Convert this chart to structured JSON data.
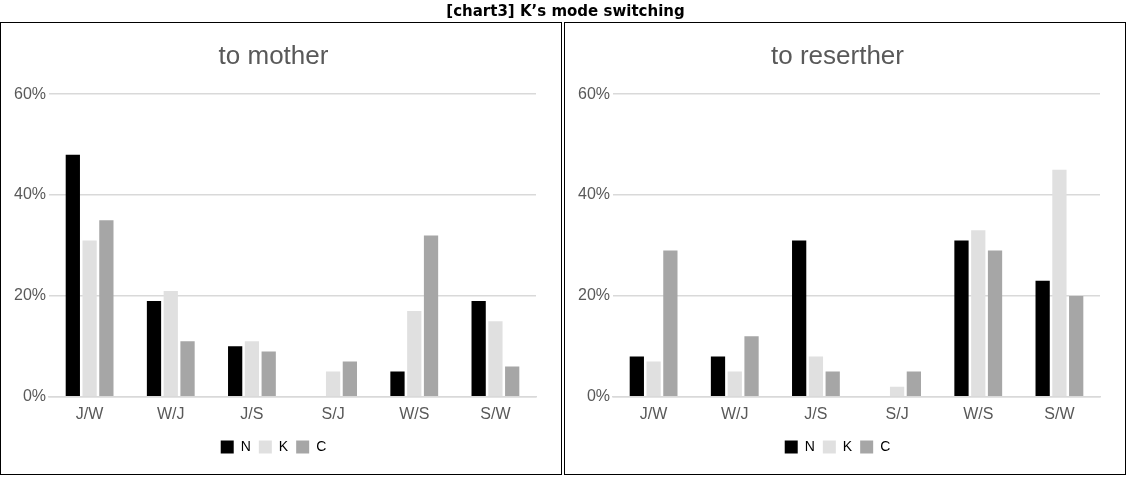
{
  "chart_data": [
    {
      "type": "bar",
      "title": "to mother",
      "annotations": [
        "[chart3] K’s mode switching"
      ],
      "categories": [
        "J/W",
        "W/J",
        "J/S",
        "S/J",
        "W/S",
        "S/W"
      ],
      "series": [
        {
          "name": "N",
          "color": "#000000",
          "values": [
            48,
            19,
            10,
            0,
            5,
            19
          ]
        },
        {
          "name": "K",
          "color": "#e0e0e0",
          "values": [
            31,
            21,
            11,
            5,
            17,
            15
          ]
        },
        {
          "name": "C",
          "color": "#a6a6a6",
          "values": [
            35,
            11,
            9,
            7,
            32,
            6
          ]
        }
      ],
      "ylim": [
        0,
        60
      ],
      "yticks": [
        {
          "value": 0,
          "label": "0%"
        },
        {
          "value": 20,
          "label": "20%"
        },
        {
          "value": 40,
          "label": "40%"
        },
        {
          "value": 60,
          "label": "60%"
        }
      ],
      "grid": "y",
      "legend": "bottom"
    },
    {
      "type": "bar",
      "title": "to reserther",
      "categories": [
        "J/W",
        "W/J",
        "J/S",
        "S/J",
        "W/S",
        "S/W"
      ],
      "series": [
        {
          "name": "N",
          "color": "#000000",
          "values": [
            8,
            8,
            31,
            0,
            31,
            23
          ]
        },
        {
          "name": "K",
          "color": "#e0e0e0",
          "values": [
            7,
            5,
            8,
            2,
            33,
            45
          ]
        },
        {
          "name": "C",
          "color": "#a6a6a6",
          "values": [
            29,
            12,
            5,
            5,
            29,
            20
          ]
        }
      ],
      "ylim": [
        0,
        60
      ],
      "yticks": [
        {
          "value": 0,
          "label": "0%"
        },
        {
          "value": 20,
          "label": "20%"
        },
        {
          "value": 40,
          "label": "40%"
        },
        {
          "value": 60,
          "label": "60%"
        }
      ],
      "grid": "y",
      "legend": "bottom"
    }
  ]
}
